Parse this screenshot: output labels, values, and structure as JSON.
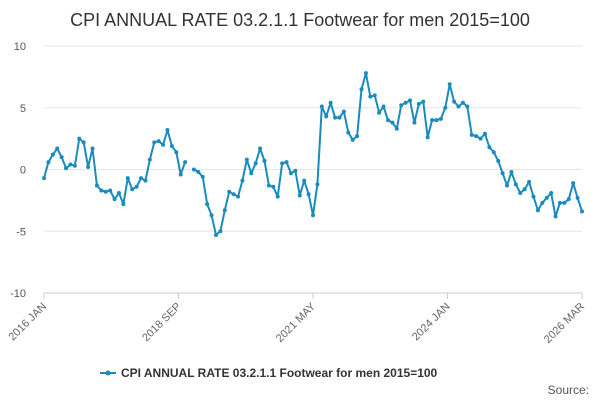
{
  "chart_data": {
    "type": "line",
    "title": "CPI ANNUAL RATE 03.2.1.1 Footwear for men 2015=100",
    "xlabel": "",
    "ylabel": "",
    "ylim": [
      -10,
      10
    ],
    "yticks": [
      "10",
      "5",
      "0",
      "-5",
      "-10"
    ],
    "xticks": [
      "2016 JAN",
      "2018 SEP",
      "2021 MAY",
      "2024 JAN",
      "2026 MAR"
    ],
    "grid": true,
    "legend": "bottom",
    "series": [
      {
        "name": "CPI ANNUAL RATE 03.2.1.1 Footwear for men 2015=100",
        "color": "#1a8bbd",
        "values": [
          -0.7,
          0.6,
          1.2,
          1.7,
          1.0,
          0.1,
          0.4,
          0.3,
          2.5,
          2.2,
          0.2,
          1.7,
          -1.3,
          -1.7,
          -1.8,
          -1.7,
          -2.4,
          -1.9,
          -2.8,
          -0.7,
          -1.6,
          -1.4,
          -0.7,
          -0.9,
          0.8,
          2.2,
          2.3,
          2.0,
          3.2,
          1.9,
          1.4,
          -0.4,
          0.6,
          null,
          0.0,
          -0.2,
          -0.6,
          -2.8,
          -3.7,
          -5.3,
          -5.0,
          -3.3,
          -1.8,
          -2.0,
          -2.2,
          -0.9,
          0.8,
          -0.3,
          0.5,
          1.7,
          0.7,
          -1.3,
          -1.4,
          -2.2,
          0.5,
          0.6,
          -0.3,
          -0.1,
          -2.1,
          -0.9,
          -2.0,
          -3.7,
          -1.2,
          5.1,
          4.3,
          5.4,
          4.2,
          4.2,
          4.7,
          3.0,
          2.4,
          2.7,
          6.5,
          7.8,
          5.9,
          6.0,
          4.6,
          5.1,
          4.0,
          3.8,
          3.3,
          5.2,
          5.4,
          5.6,
          3.8,
          5.3,
          5.5,
          2.6,
          4.0,
          4.0,
          4.1,
          5.0,
          6.9,
          5.5,
          5.1,
          5.4,
          5.1,
          2.8,
          2.7,
          2.5,
          2.9,
          1.8,
          1.4,
          0.7,
          -0.3,
          -1.3,
          -0.2,
          -1.2,
          -1.9,
          -1.6,
          -1.0,
          -2.2,
          -3.3,
          -2.7,
          -2.3,
          -1.9,
          -3.8,
          -2.7,
          -2.7,
          -2.4,
          -1.1,
          -2.3,
          -3.4
        ]
      }
    ],
    "credit": "Source: "
  }
}
